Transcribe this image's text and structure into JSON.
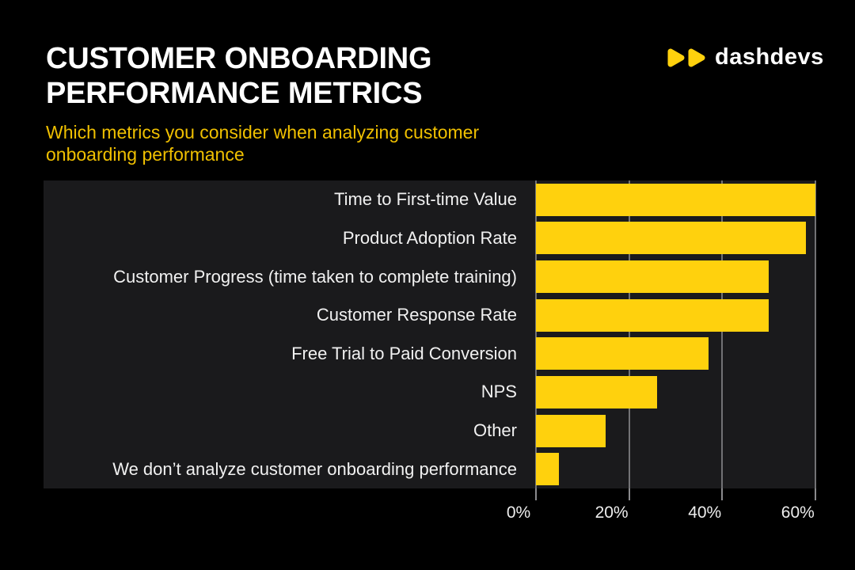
{
  "header": {
    "title_lines": [
      "Customer Onboarding",
      "Performance Metrics"
    ],
    "subtitle_lines": [
      "Which metrics you consider when analyzing customer",
      "onboarding performance"
    ]
  },
  "logo": {
    "text": "dashdevs",
    "icon": "double-play-triangles",
    "icon_color": "#FFD10D",
    "text_color": "#FFFFFF"
  },
  "colors": {
    "page_bg": "#000000",
    "panel_bg": "#1A1A1C",
    "bar": "#FFD10D",
    "subtitle_text": "#F0C000",
    "title_text": "#FFFFFF",
    "category_text": "#F1F1F1",
    "gridline": "#727275",
    "axis_text": "#EDEDED"
  },
  "chart_data": {
    "type": "bar",
    "orientation": "horizontal",
    "title": "Customer Onboarding Performance Metrics",
    "subtitle": "Which metrics you consider when analyzing customer onboarding performance",
    "categories": [
      "Time to First-time Value",
      "Product Adoption Rate",
      "Customer Progress (time taken to complete training)",
      "Customer Response Rate",
      "Free Trial to Paid Conversion",
      "NPS",
      "Other",
      "We don’t analyze customer onboarding performance"
    ],
    "values": [
      60,
      58,
      50,
      50,
      37,
      26,
      15,
      5
    ],
    "unit": "%",
    "xlabel": "",
    "ylabel": "",
    "x_ticks": [
      "0%",
      "20%",
      "40%",
      "60%"
    ],
    "x_tick_values": [
      0,
      20,
      40,
      60
    ],
    "xlim": [
      0,
      60.2
    ],
    "grid": true,
    "legend": "none",
    "bar_color": "#FFD10D"
  }
}
